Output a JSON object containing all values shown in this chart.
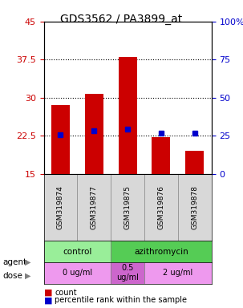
{
  "title": "GDS3562 / PA3899_at",
  "samples": [
    "GSM319874",
    "GSM319877",
    "GSM319875",
    "GSM319876",
    "GSM319878"
  ],
  "bar_bottoms": [
    15,
    15,
    15,
    15,
    15
  ],
  "bar_tops": [
    28.5,
    30.7,
    38.0,
    22.3,
    19.5
  ],
  "bar_color": "#cc0000",
  "dot_values": [
    25.5,
    28.5,
    29.5,
    26.5,
    26.5
  ],
  "dot_color": "#0000cc",
  "ylim_left": [
    15,
    45
  ],
  "ylim_right": [
    0,
    100
  ],
  "yticks_left": [
    15,
    22.5,
    30,
    37.5,
    45
  ],
  "ytick_labels_left": [
    "15",
    "22.5",
    "30",
    "37.5",
    "45"
  ],
  "yticks_right": [
    0,
    25,
    50,
    75,
    100
  ],
  "ytick_labels_right": [
    "0",
    "25",
    "50",
    "75",
    "100%"
  ],
  "left_tick_color": "#cc0000",
  "right_tick_color": "#0000cc",
  "grid_yticks": [
    22.5,
    30.0,
    37.5
  ],
  "agent_groups": [
    {
      "label": "control",
      "start": 0,
      "end": 2,
      "color": "#99ee99"
    },
    {
      "label": "azithromycin",
      "start": 2,
      "end": 5,
      "color": "#55cc55"
    }
  ],
  "dose_groups": [
    {
      "label": "0 ug/ml",
      "start": 0,
      "end": 2,
      "color": "#ee99ee"
    },
    {
      "label": "0.5\nug/ml",
      "start": 2,
      "end": 3,
      "color": "#cc66cc"
    },
    {
      "label": "2 ug/ml",
      "start": 3,
      "end": 5,
      "color": "#ee99ee"
    }
  ],
  "legend_items": [
    {
      "label": "count",
      "color": "#cc0000",
      "marker": "s"
    },
    {
      "label": "percentile rank within the sample",
      "color": "#0000cc",
      "marker": "s"
    }
  ],
  "plot_bg_color": "#e8e8e8",
  "bar_width": 0.55
}
